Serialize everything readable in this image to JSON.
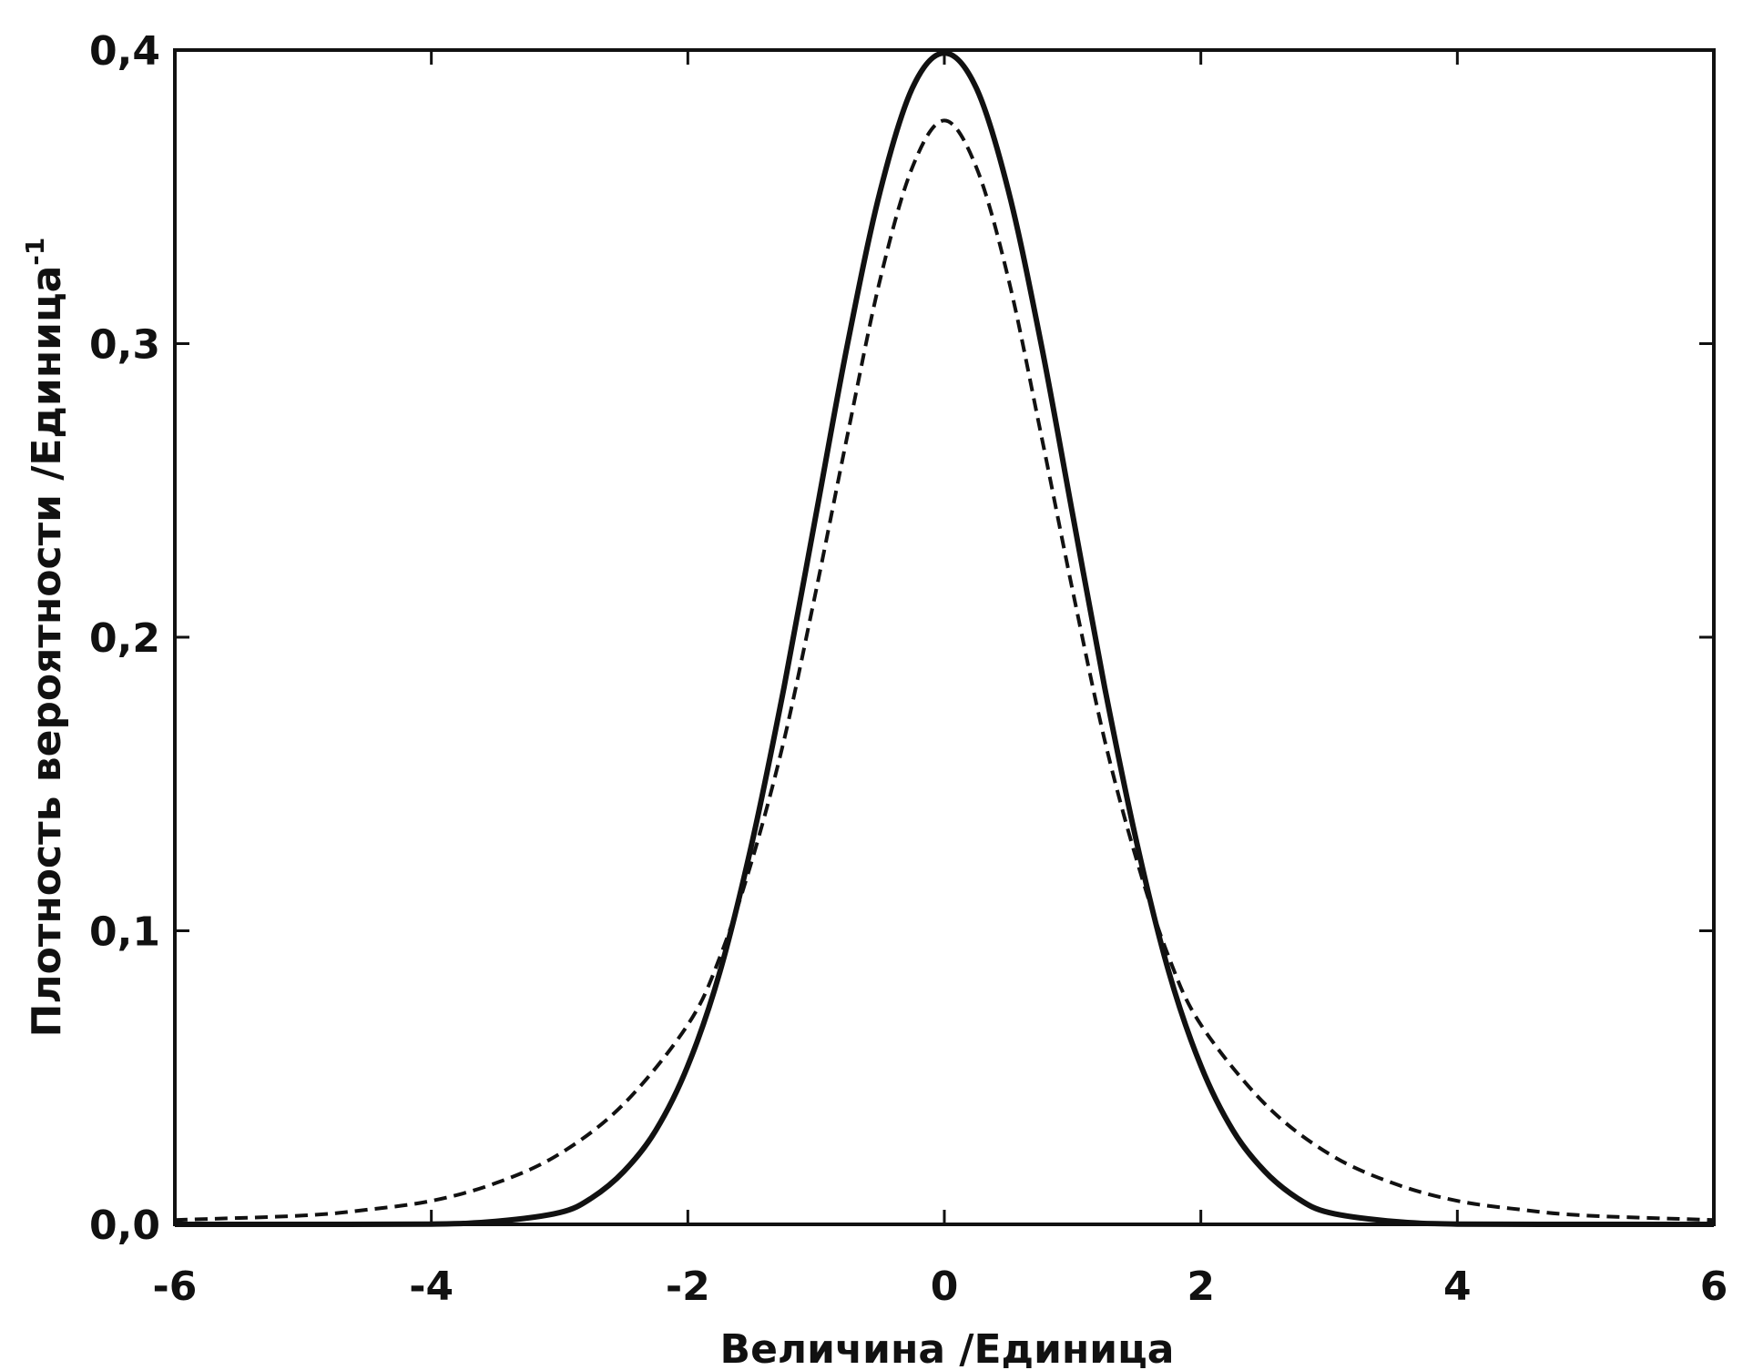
{
  "chart_data": {
    "type": "line",
    "title": "",
    "xlabel": "Величина /Единица",
    "ylabel": "Плотность вероятности /Единица",
    "ylabel_superscript": "-1",
    "xlim": [
      -6,
      6
    ],
    "ylim": [
      0,
      0.4
    ],
    "xticks": [
      "-6",
      "-4",
      "-2",
      "0",
      "2",
      "4",
      "6"
    ],
    "yticks": [
      "0,0",
      "0,1",
      "0,2",
      "0,3",
      "0,4"
    ],
    "xtick_values": [
      -6,
      -4,
      -2,
      0,
      2,
      4,
      6
    ],
    "ytick_values": [
      0,
      0.1,
      0.2,
      0.3,
      0.4
    ],
    "grid": false,
    "legend": "none",
    "series": [
      {
        "style": "solid",
        "color": "#111111",
        "x": [
          -6,
          -5,
          -4,
          -3.5,
          -3,
          -2.75,
          -2.5,
          -2.25,
          -2,
          -1.75,
          -1.5,
          -1.25,
          -1,
          -0.75,
          -0.5,
          -0.25,
          0,
          0.25,
          0.5,
          0.75,
          1,
          1.25,
          1.5,
          1.75,
          2,
          2.25,
          2.5,
          2.75,
          3,
          3.5,
          4,
          5,
          6
        ],
        "y": [
          0,
          0,
          0.0001,
          0.001,
          0.004,
          0.009,
          0.018,
          0.032,
          0.054,
          0.086,
          0.13,
          0.183,
          0.242,
          0.301,
          0.352,
          0.387,
          0.399,
          0.387,
          0.352,
          0.301,
          0.242,
          0.183,
          0.13,
          0.086,
          0.054,
          0.032,
          0.018,
          0.009,
          0.004,
          0.001,
          0.0001,
          0,
          0
        ]
      },
      {
        "style": "dashed",
        "color": "#111111",
        "x": [
          -6,
          -5,
          -4.5,
          -4,
          -3.5,
          -3,
          -2.5,
          -2,
          -1.75,
          -1.5,
          -1.25,
          -1,
          -0.75,
          -0.5,
          -0.25,
          0,
          0.25,
          0.5,
          0.75,
          1,
          1.25,
          1.5,
          1.75,
          2,
          2.5,
          3,
          3.5,
          4,
          4.5,
          5,
          6
        ],
        "y": [
          0.0015,
          0.003,
          0.005,
          0.008,
          0.014,
          0.024,
          0.041,
          0.068,
          0.091,
          0.124,
          0.165,
          0.216,
          0.27,
          0.322,
          0.36,
          0.376,
          0.36,
          0.322,
          0.27,
          0.216,
          0.165,
          0.124,
          0.091,
          0.068,
          0.041,
          0.024,
          0.014,
          0.008,
          0.005,
          0.003,
          0.0015
        ]
      }
    ]
  }
}
